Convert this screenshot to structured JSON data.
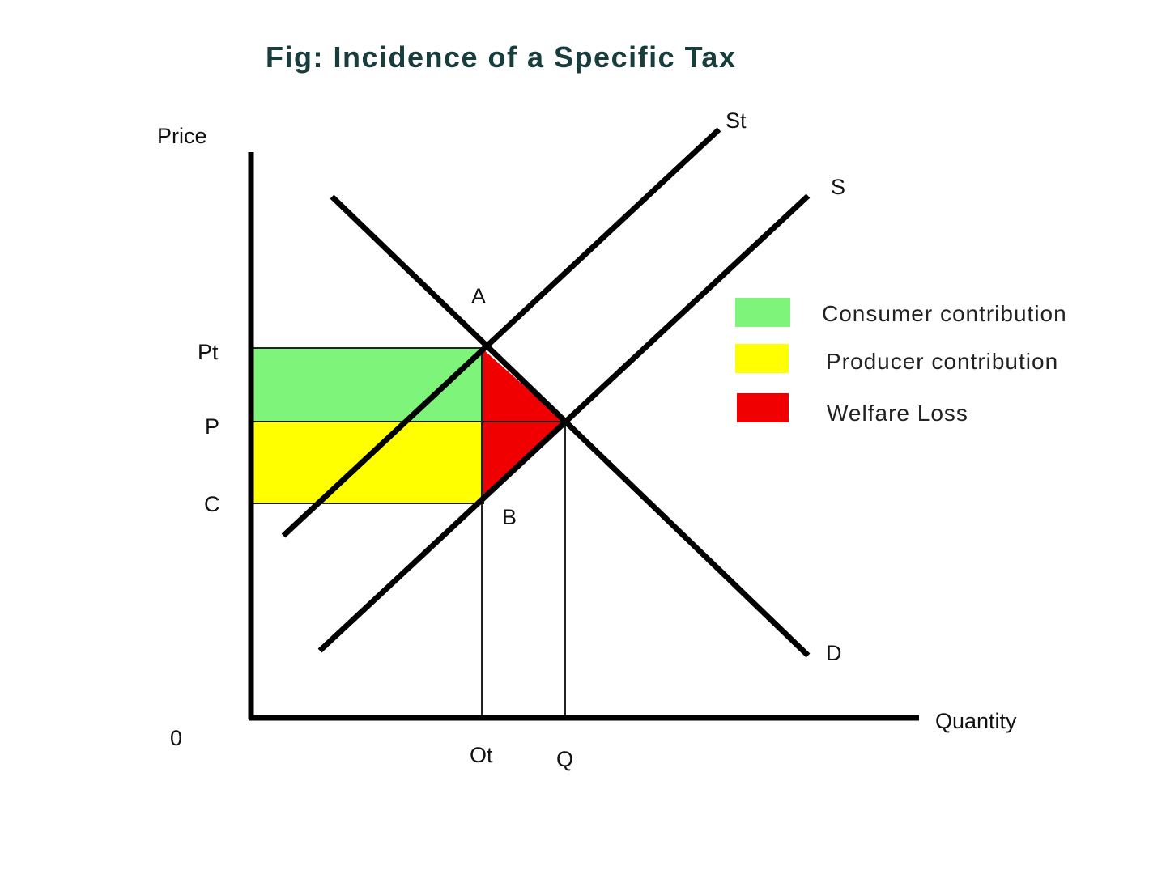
{
  "title": "Fig: Incidence of a Specific Tax",
  "axes": {
    "y_label": "Price",
    "x_label": "Quantity",
    "origin": "0"
  },
  "price_levels": {
    "pt": "Pt",
    "p": "P",
    "c": "C"
  },
  "quantity_levels": {
    "ot": "Ot",
    "q": "Q"
  },
  "curves": {
    "supply_tax": "St",
    "supply": "S",
    "demand": "D"
  },
  "points": {
    "a": "A",
    "b": "B"
  },
  "legend": [
    {
      "label": "Consumer contribution",
      "color": "#7ef57a"
    },
    {
      "label": "Producer contribution",
      "color": "#ffff00"
    },
    {
      "label": "Welfare Loss",
      "color": "#f00000"
    }
  ]
}
